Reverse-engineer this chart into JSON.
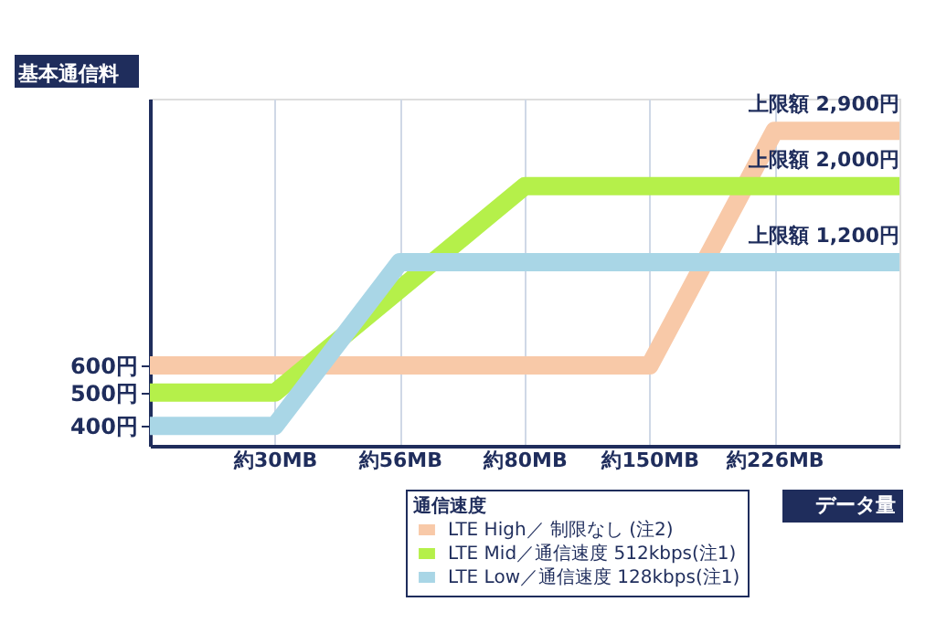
{
  "chart_data": {
    "type": "line",
    "ylabel": "基本通信料",
    "xlabel": "データ量",
    "legend_title": "通信速度",
    "categories": [
      null,
      "約30MB",
      "約56MB",
      "約80MB",
      "約150MB",
      "約226MB",
      null
    ],
    "series": [
      {
        "name": "LTE High／ 制限なし (注2)",
        "color": "#f8c9a8",
        "values": [
          600,
          600,
          600,
          600,
          600,
          2900,
          2900
        ]
      },
      {
        "name": "LTE Mid／通信速度 512kbps(注1)",
        "color": "#b5f04a",
        "values": [
          500,
          500,
          null,
          2000,
          2000,
          2000,
          2000
        ]
      },
      {
        "name": "LTE Low／通信速度 128kbps(注1)",
        "color": "#a9d6e6",
        "values": [
          400,
          400,
          1200,
          1200,
          1200,
          1200,
          1200
        ]
      }
    ],
    "annotations": [
      {
        "text": "上限額 2,900円",
        "y": 2900
      },
      {
        "text": "上限額 2,000円",
        "y": 2000
      },
      {
        "text": "上限額 1,200円",
        "y": 1200
      }
    ],
    "log": "y",
    "ylim": [
      350,
      3600
    ],
    "yticks": [
      {
        "value": 400,
        "label": "400円"
      },
      {
        "value": 500,
        "label": "500円"
      },
      {
        "value": 600,
        "label": "600円"
      }
    ],
    "grid": "x",
    "legend": "bottom right",
    "marker": "none",
    "line_style": "solid"
  }
}
